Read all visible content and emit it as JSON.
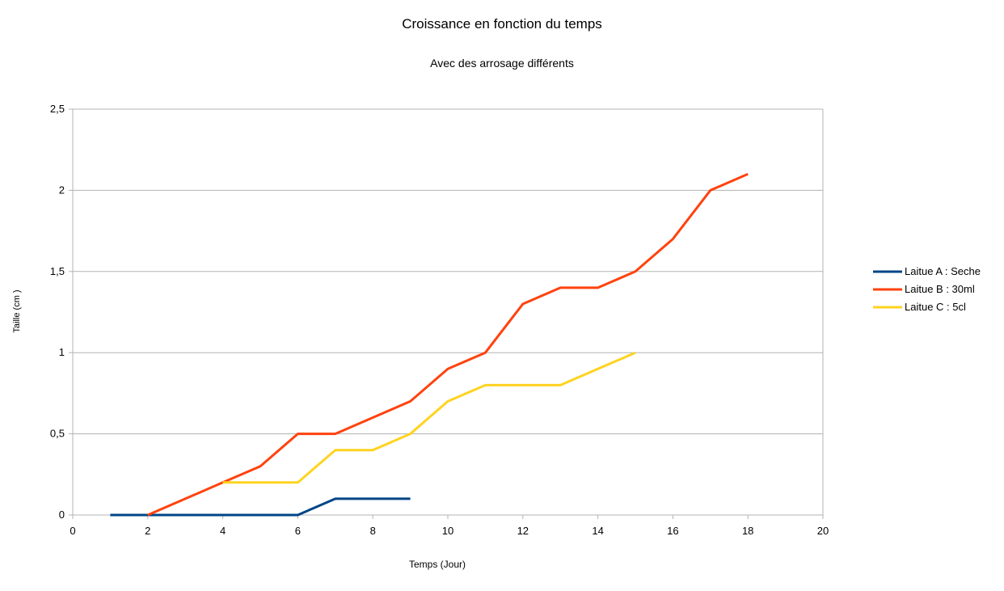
{
  "chart_data": {
    "type": "line",
    "title": "Croissance en fonction du temps",
    "subtitle": "Avec des arrosage différents",
    "xlabel": "Temps (Jour)",
    "ylabel": "Taille (cm )",
    "xlim": [
      0,
      20
    ],
    "ylim": [
      0,
      2.5
    ],
    "x_ticks": [
      0,
      2,
      4,
      6,
      8,
      10,
      12,
      14,
      16,
      18,
      20
    ],
    "x_tick_labels": [
      "0",
      "2",
      "4",
      "6",
      "8",
      "10",
      "12",
      "14",
      "16",
      "18",
      "20"
    ],
    "y_ticks": [
      0,
      0.5,
      1,
      1.5,
      2,
      2.5
    ],
    "y_tick_labels": [
      "0",
      "0,5",
      "1",
      "1,5",
      "2",
      "2,5"
    ],
    "grid": "horizontal",
    "legend_position": "right",
    "series": [
      {
        "name": "Laitue A : Seche",
        "color": "#004586",
        "points": [
          [
            1,
            0
          ],
          [
            2,
            0
          ],
          [
            3,
            0
          ],
          [
            4,
            0
          ],
          [
            5,
            0
          ],
          [
            6,
            0
          ],
          [
            7,
            0.1
          ],
          [
            8,
            0.1
          ],
          [
            9,
            0.1
          ]
        ]
      },
      {
        "name": "Laitue B : 30ml",
        "color": "#ff420e",
        "points": [
          [
            2,
            0
          ],
          [
            3,
            0.1
          ],
          [
            4,
            0.2
          ],
          [
            5,
            0.3
          ],
          [
            6,
            0.5
          ],
          [
            7,
            0.5
          ],
          [
            8,
            0.6
          ],
          [
            9,
            0.7
          ],
          [
            10,
            0.9
          ],
          [
            11,
            1.0
          ],
          [
            12,
            1.3
          ],
          [
            13,
            1.4
          ],
          [
            14,
            1.4
          ],
          [
            15,
            1.5
          ],
          [
            16,
            1.7
          ],
          [
            17,
            2.0
          ],
          [
            18,
            2.1
          ]
        ]
      },
      {
        "name": "Laitue C : 5cl",
        "color": "#ffd320",
        "points": [
          [
            4,
            0.2
          ],
          [
            5,
            0.2
          ],
          [
            6,
            0.2
          ],
          [
            7,
            0.4
          ],
          [
            8,
            0.4
          ],
          [
            9,
            0.5
          ],
          [
            10,
            0.7
          ],
          [
            11,
            0.8
          ],
          [
            12,
            0.8
          ],
          [
            13,
            0.8
          ],
          [
            14,
            0.9
          ],
          [
            15,
            1.0
          ]
        ]
      }
    ]
  }
}
